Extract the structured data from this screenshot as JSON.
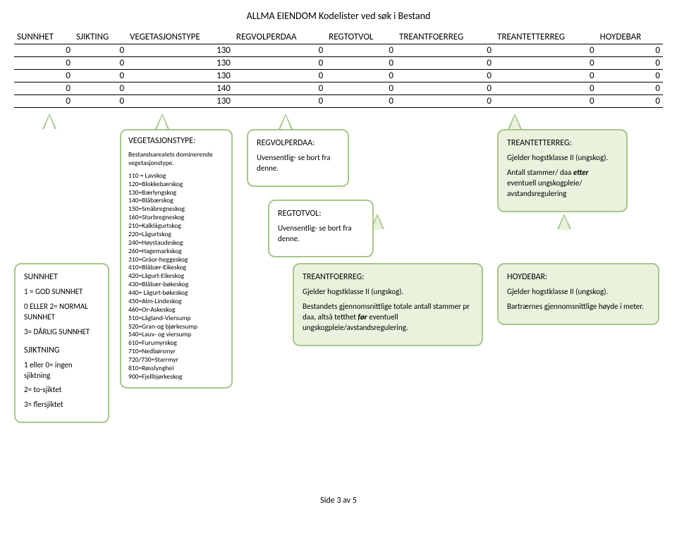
{
  "page_title": "ALLMA EIENDOM Kodelister ved søk i Bestand",
  "footer": "Side 3 av 5",
  "table": {
    "columns": [
      "SUNNHET",
      "SJIKTING",
      "VEGETASJONSTYPE",
      "REGVOLPERDAA",
      "REGTOTVOL",
      "TREANTFOERREG",
      "TREANTETTERREG",
      "HOYDEBAR"
    ],
    "rows": [
      [
        0,
        0,
        130,
        0,
        0,
        0,
        0,
        0
      ],
      [
        0,
        0,
        130,
        0,
        0,
        0,
        0,
        0
      ],
      [
        0,
        0,
        130,
        0,
        0,
        0,
        0,
        0
      ],
      [
        0,
        0,
        140,
        0,
        0,
        0,
        0,
        0
      ],
      [
        0,
        0,
        130,
        0,
        0,
        0,
        0,
        0
      ]
    ]
  },
  "sunnhet": {
    "title": "SUNNHET",
    "l1": "1 = GOD SUNNHET",
    "l2": "0 ELLER 2= NORMAL SUNNHET",
    "l3": "3= DÅRLIG SUNNHET",
    "title2": "SJIKTNING",
    "s1": "1 eller 0= ingen sjiktning",
    "s2": "2= to-sjiktet",
    "s3": "3= flersjiktet"
  },
  "vegtype": {
    "title": "VEGETASJONSTYPE:",
    "intro": "Bestandsarealets dominerende vegetasjonstype.",
    "codes": [
      "110 = Lavskog",
      "120=Blokkebærskog",
      "130=Bærlyngskog",
      "140=Blåbærskog",
      "150=Småbregneskog",
      "160=Storbregneskog",
      "210=Kalklågurtskog",
      "220=Lågurtskog",
      "240=Høystaudeskog",
      "260=Hagemarkskog",
      "310=Gråor-heggeskog",
      "410=Blåbær-Eikeskog",
      "420=Lågurt-Eikeskog",
      "430=Blåbær-bøkeskog",
      "440= Lågurt-bøkeskog",
      "450=Alm-Lindeskog",
      "460=Or-Askeskog",
      "510=Lågland-Viersump",
      "520=Gran-og bjørkesump",
      "540=Lauv- og viersump",
      "610=Furumyrskog",
      "710=Nedbørsmyr",
      "720/730=Starrmyr",
      "810=Røsslynghei",
      "900=Fjellbjørkeskog"
    ]
  },
  "regvolperdaa": {
    "title": "REGVOLPERDAA:",
    "body": "Uvensentlig- se bort fra denne."
  },
  "regtotvol": {
    "title": "REGTOTVOL:",
    "body": "Uvensentlig- se bort fra denne."
  },
  "treantfoerreg": {
    "title": "TREANTFOERREG:",
    "l1": "Gjelder hogstklasse II (ungskog).",
    "l2a": "Bestandets gjennomsnittlige totale antall stammer pr daa, altså tetthet ",
    "l2b": "før",
    "l2c": " eventuell ungskogpleie/avstandsregulering."
  },
  "treantetterreg": {
    "title": "TREANTETTERREG:",
    "l1": "Gjelder hogstklasse II (ungskog).",
    "l2a": "Antall stammer/ daa ",
    "l2b": "etter",
    "l2c": " eventuell ungskogpleie/ avstandsregulering"
  },
  "hoydebar": {
    "title": "HOYDEBAR:",
    "l1": "Gjelder hogstklasse II (ungskog).",
    "l2": "Bartrærnes gjennomsnittlige høyde i meter."
  },
  "style": {
    "border": "#a7c689",
    "green_fill": "#eaf1dd",
    "white_fill": "#ffffff"
  }
}
